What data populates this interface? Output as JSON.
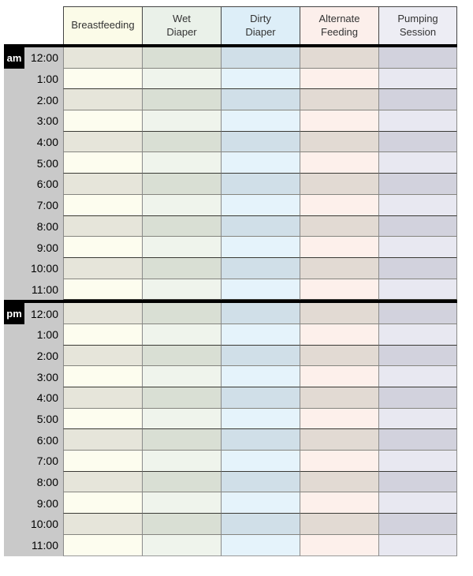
{
  "table": {
    "columns": [
      {
        "key": "breastfeeding",
        "label": "Breastfeeding",
        "label_lines": [
          "Breastfeeding"
        ],
        "header_bg": "#fbfbe8",
        "row_light": "#fdfdef",
        "row_dark": "#e6e5da"
      },
      {
        "key": "wet-diaper",
        "label": "Wet Diaper",
        "label_lines": [
          "Wet",
          "Diaper"
        ],
        "header_bg": "#eaf1e9",
        "row_light": "#eff4ec",
        "row_dark": "#d9dfd4"
      },
      {
        "key": "dirty-diaper",
        "label": "Dirty Diaper",
        "label_lines": [
          "Dirty",
          "Diaper"
        ],
        "header_bg": "#ddeef8",
        "row_light": "#e5f3fb",
        "row_dark": "#d0dfe8"
      },
      {
        "key": "alternate-feeding",
        "label": "Alternate Feeding",
        "label_lines": [
          "Alternate",
          "Feeding"
        ],
        "header_bg": "#fcefeb",
        "row_light": "#fdf0eb",
        "row_dark": "#e2dad3"
      },
      {
        "key": "pumping-session",
        "label": "Pumping Session",
        "label_lines": [
          "Pumping",
          "Session"
        ],
        "header_bg": "#ededf4",
        "row_light": "#e8e8f1",
        "row_dark": "#d2d2dd"
      }
    ],
    "sections": [
      {
        "badge": "am",
        "hours": [
          "12:00",
          "1:00",
          "2:00",
          "3:00",
          "4:00",
          "5:00",
          "6:00",
          "7:00",
          "8:00",
          "9:00",
          "10:00",
          "11:00"
        ]
      },
      {
        "badge": "pm",
        "hours": [
          "12:00",
          "1:00",
          "2:00",
          "3:00",
          "4:00",
          "5:00",
          "6:00",
          "7:00",
          "8:00",
          "9:00",
          "10:00",
          "11:00"
        ]
      }
    ],
    "colors": {
      "rail_bg": "#c9c9c9",
      "badge_bg": "#000000",
      "badge_text": "#ffffff",
      "grid_line": "#8a8a8a",
      "row_line_gray": "#85857f",
      "row_line_black": "#3a3a35",
      "divider": "#000000",
      "header_border": "#444444",
      "bottom_edge": "#9a9a9a"
    }
  }
}
